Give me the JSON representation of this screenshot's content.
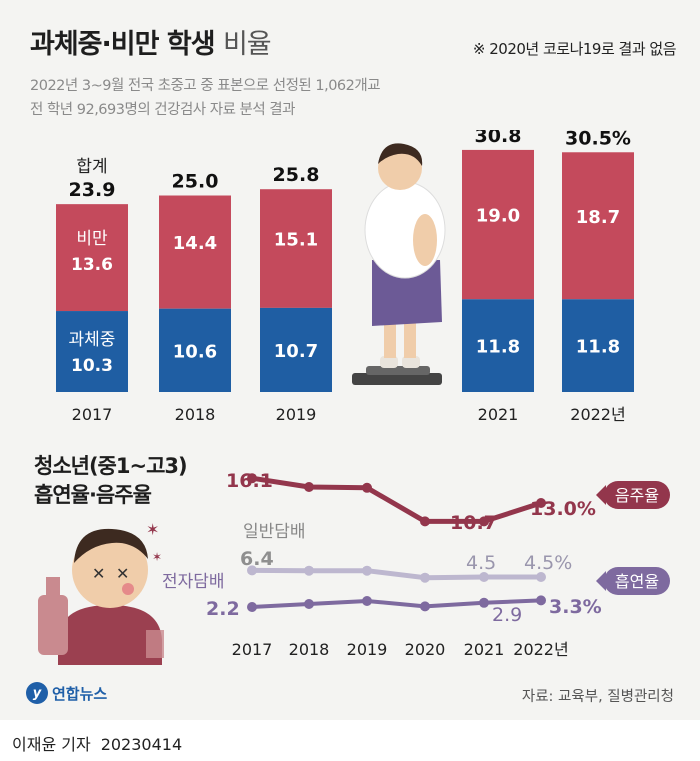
{
  "title": {
    "main": "과체중·비만 학생",
    "suffix": "비율"
  },
  "note": "※ 2020년 코로나19로 결과 없음",
  "subtitle": [
    "2022년 3~9월 전국 초중고 중 표본으로 선정된 1,062개교",
    "전 학년 92,693명의 건강검사 자료 분석 결과"
  ],
  "source": "자료: 교육부, 질병관리청",
  "logo": "연합뉴스",
  "byline": {
    "name": "이재윤 기자",
    "date": "20230414"
  },
  "colors": {
    "overweight": "#1f5ea3",
    "obese": "#c44a5c",
    "drinking": "#93364c",
    "cig": "#bdb7cf",
    "ecig": "#7e6a9f"
  },
  "chart_data": [
    {
      "type": "bar",
      "stacked": true,
      "categories": [
        "2017",
        "2018",
        "2019",
        "2021",
        "2022년"
      ],
      "series": [
        {
          "name": "과체중",
          "values": [
            10.3,
            10.6,
            10.7,
            11.8,
            11.8
          ]
        },
        {
          "name": "비만",
          "values": [
            13.6,
            14.4,
            15.1,
            19.0,
            18.7
          ]
        }
      ],
      "total_name": "합계",
      "totals": [
        23.9,
        25.0,
        25.8,
        30.8,
        30.5
      ],
      "total_labels": [
        "23.9",
        "25.0",
        "25.8",
        "30.8",
        "30.5%"
      ]
    },
    {
      "type": "line",
      "title_lines": [
        "청소년(중1~고3)",
        "흡연율·음주율"
      ],
      "x": [
        "2017",
        "2018",
        "2019",
        "2020",
        "2021",
        "2022년"
      ],
      "series": [
        {
          "name": "음주율",
          "values": [
            16.1,
            15.0,
            14.9,
            10.7,
            10.7,
            13.0
          ],
          "labels": [
            "16.1",
            "",
            "",
            "",
            "10.7",
            "13.0%"
          ]
        },
        {
          "name": "일반담배",
          "values": [
            6.4,
            6.3,
            6.3,
            4.3,
            4.5,
            4.5
          ],
          "labels": [
            "6.4",
            "",
            "",
            "",
            "4.5",
            "4.5%"
          ]
        },
        {
          "name": "전자담배",
          "values": [
            2.2,
            2.7,
            3.2,
            2.3,
            2.9,
            3.3
          ],
          "labels": [
            "2.2",
            "",
            "",
            "",
            "2.9",
            "3.3%"
          ]
        }
      ],
      "badges": [
        "음주율",
        "흡연율"
      ]
    }
  ]
}
